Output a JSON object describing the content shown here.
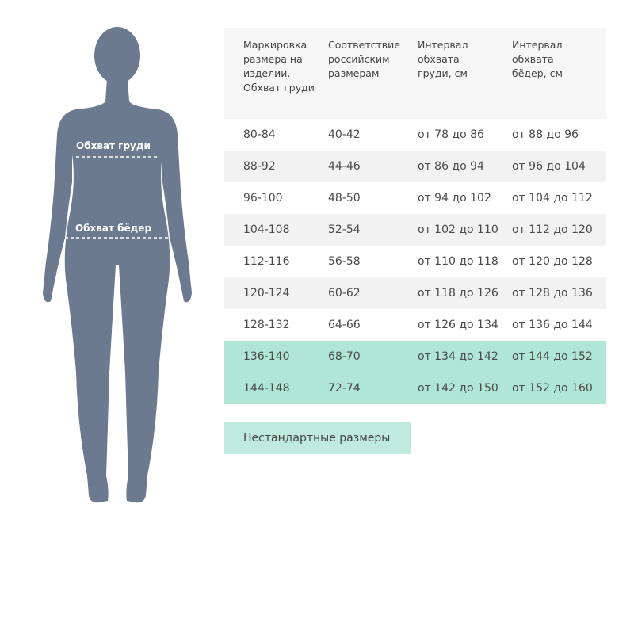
{
  "figure": {
    "chest_label": "Обхват груди",
    "hips_label": "Обхват бёдер",
    "body_color": "#6b7a8f"
  },
  "table": {
    "headers": [
      "Маркировка размера на изделии. Обхват груди",
      "Соответствие российским размерам",
      "Интервал обхвата груди, см",
      "Интервал обхвата бёдер, см"
    ],
    "rows": [
      [
        "80-84",
        "40-42",
        "от 78 до 86",
        "от 88 до 96"
      ],
      [
        "88-92",
        "44-46",
        "от 86 до 94",
        "от 96 до 104"
      ],
      [
        "96-100",
        "48-50",
        "от 94 до 102",
        "от 104 до 112"
      ],
      [
        "104-108",
        "52-54",
        "от 102 до 110",
        "от 112 до 120"
      ],
      [
        "112-116",
        "56-58",
        "от 110 до 118",
        "от 120 до 128"
      ],
      [
        "120-124",
        "60-62",
        "от 118 до 126",
        "от 128 до 136"
      ],
      [
        "128-132",
        "64-66",
        "от 126 до 134",
        "от 136 до 144"
      ],
      [
        "136-140",
        "68-70",
        "от 134 до 142",
        "от 144 до 152"
      ],
      [
        "144-148",
        "72-74",
        "от 142 до 150",
        "от 152 до 160"
      ]
    ],
    "highlight_color": "#b0e6d5",
    "alt_row_color": "#f2f2f2"
  },
  "nonstandard_button": "Нестандартные размеры"
}
